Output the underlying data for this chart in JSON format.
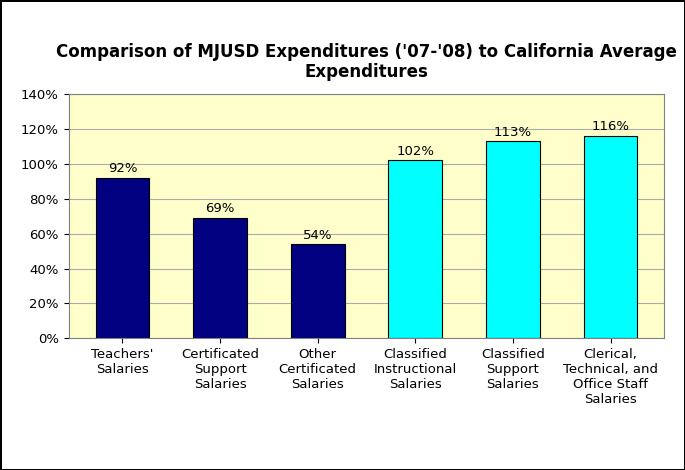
{
  "title": "Comparison of MJUSD Expenditures ('07-'08) to California Average\nExpenditures",
  "categories": [
    "Teachers'\nSalaries",
    "Certificated\nSupport\nSalaries",
    "Other\nCertificated\nSalaries",
    "Classified\nInstructional\nSalaries",
    "Classified\nSupport\nSalaries",
    "Clerical,\nTechnical, and\nOffice Staff\nSalaries"
  ],
  "values": [
    92,
    69,
    54,
    102,
    113,
    116
  ],
  "labels": [
    "92%",
    "69%",
    "54%",
    "102%",
    "113%",
    "116%"
  ],
  "bar_colors": [
    "#000080",
    "#000080",
    "#000080",
    "#00FFFF",
    "#00FFFF",
    "#00FFFF"
  ],
  "plot_bg_color": "#FFFFCC",
  "fig_bg_color": "#FFFFFF",
  "border_color": "#000000",
  "ylim": [
    0,
    140
  ],
  "yticks": [
    0,
    20,
    40,
    60,
    80,
    100,
    120,
    140
  ],
  "ytick_labels": [
    "0%",
    "20%",
    "40%",
    "60%",
    "80%",
    "100%",
    "120%",
    "140%"
  ],
  "title_fontsize": 12,
  "label_fontsize": 9.5,
  "tick_fontsize": 9.5,
  "bar_width": 0.55,
  "grid_color": "#AAAAAA",
  "spine_color": "#808080"
}
